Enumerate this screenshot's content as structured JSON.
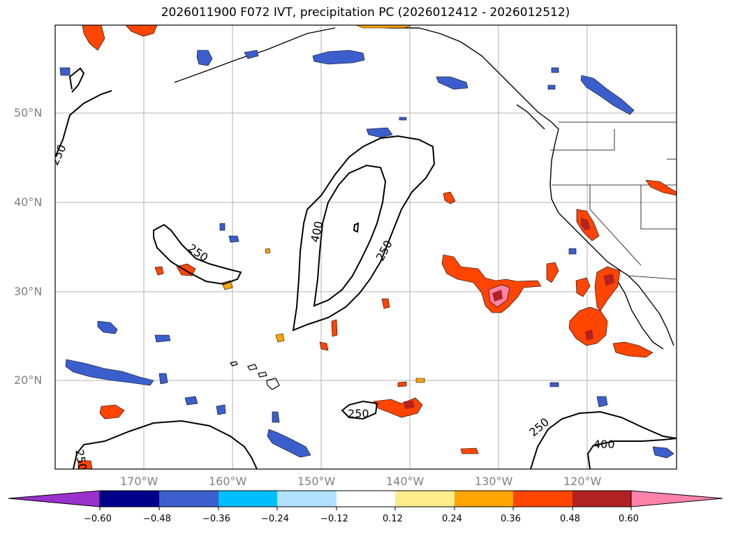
{
  "title": "2026011900 F072 IVT, precipitation PC (2026012412 - 2026012512)",
  "map": {
    "lat_labels": [
      "50°N",
      "40°N",
      "30°N",
      "20°N"
    ],
    "lon_labels": [
      "170°W",
      "160°W",
      "150°W",
      "140°W",
      "130°W",
      "120°W"
    ],
    "contour_labels": [
      "250",
      "400",
      "250",
      "250",
      "250",
      "400",
      "250",
      "250"
    ],
    "contour_levels": [
      250,
      400
    ],
    "grid": true
  },
  "colorbar": {
    "ticks": [
      "−0.60",
      "−0.48",
      "−0.36",
      "−0.24",
      "−0.12",
      "0.12",
      "0.24",
      "0.36",
      "0.48",
      "0.60"
    ],
    "colors": [
      "#9932cc",
      "#00008b",
      "#3a5fcd",
      "#00bfff",
      "#b0e2ff",
      "#ffffff",
      "#ffec8b",
      "#ffa500",
      "#ff4500",
      "#b22222",
      "#ff82ab"
    ]
  }
}
